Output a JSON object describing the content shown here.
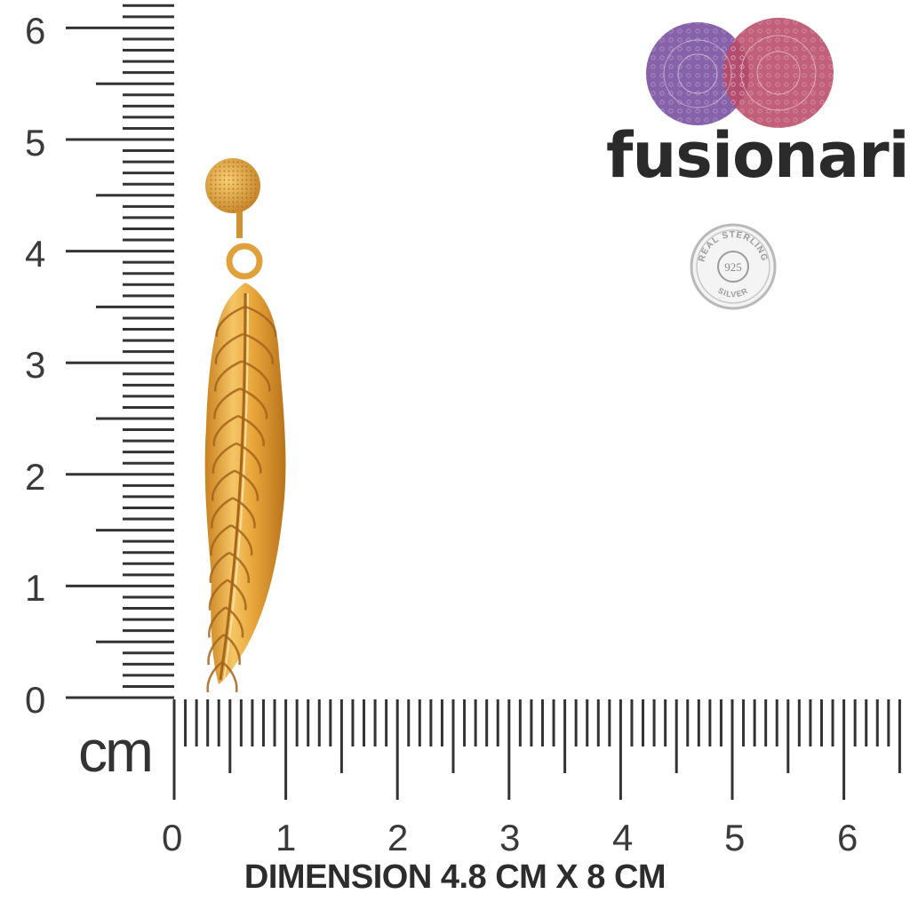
{
  "ruler": {
    "unit": "cm",
    "vertical_labels": [
      "6",
      "5",
      "4",
      "3",
      "2",
      "1",
      "0"
    ],
    "horizontal_labels": [
      "0",
      "1",
      "2",
      "3",
      "4",
      "5",
      "6"
    ]
  },
  "caption": "DIMENSION 4.8 CM X 8 CM",
  "brand": {
    "name": "fusionari",
    "colors": {
      "purple": "#7d55a3",
      "rose": "#b94967"
    }
  },
  "badge": {
    "top_text": "REAL STERLING",
    "center_text": "925",
    "bottom_text": "SILVER"
  },
  "product": {
    "description_icon": "feather-earring",
    "color": "#e7a83a"
  }
}
